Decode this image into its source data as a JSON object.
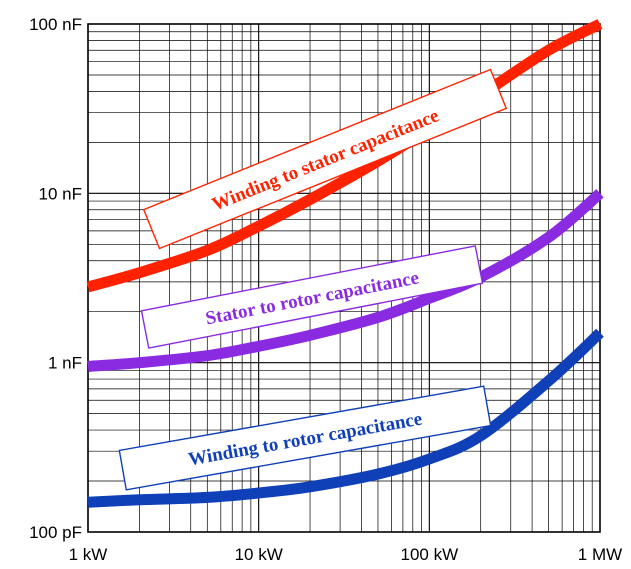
{
  "chart_data": {
    "type": "line",
    "title": "",
    "xlabel": "",
    "ylabel": "",
    "x_scale": "log",
    "y_scale": "log",
    "grid": true,
    "x_unit": "W",
    "y_unit": "F",
    "xlim": [
      1000,
      1000000
    ],
    "ylim": [
      1e-10,
      1e-07
    ],
    "x_ticks": [
      {
        "value": 1000,
        "label": "1 kW"
      },
      {
        "value": 10000,
        "label": "10 kW"
      },
      {
        "value": 100000,
        "label": "100 kW"
      },
      {
        "value": 1000000,
        "label": "1 MW"
      }
    ],
    "y_ticks": [
      {
        "value": 1e-10,
        "label": "100 pF"
      },
      {
        "value": 1e-09,
        "label": "1 nF"
      },
      {
        "value": 1e-08,
        "label": "10 nF"
      },
      {
        "value": 1e-07,
        "label": "100 nF"
      }
    ],
    "series": [
      {
        "name": "Winding to stator capacitance",
        "color": "#ff2200",
        "x": [
          1000,
          2000,
          5000,
          10000,
          20000,
          50000,
          100000,
          200000,
          500000,
          1000000
        ],
        "y": [
          2.8e-09,
          3.4e-09,
          4.6e-09,
          6.4e-09,
          9.2e-09,
          1.55e-08,
          2.4e-08,
          3.8e-08,
          7e-08,
          1e-07
        ]
      },
      {
        "name": "Stator to rotor capacitance",
        "color": "#8a2be2",
        "x": [
          1000,
          2000,
          5000,
          10000,
          20000,
          50000,
          100000,
          200000,
          500000,
          1000000
        ],
        "y": [
          9.5e-10,
          1e-09,
          1.1e-09,
          1.25e-09,
          1.45e-09,
          1.85e-09,
          2.4e-09,
          3.2e-09,
          5.5e-09,
          1e-08
        ]
      },
      {
        "name": "Winding to rotor capacitance",
        "color": "#1040b8",
        "x": [
          1000,
          2000,
          5000,
          10000,
          20000,
          50000,
          100000,
          200000,
          500000,
          1000000
        ],
        "y": [
          1.5e-10,
          1.55e-10,
          1.6e-10,
          1.7e-10,
          1.85e-10,
          2.2e-10,
          2.7e-10,
          3.7e-10,
          7.8e-10,
          1.5e-09
        ]
      }
    ],
    "annotations": [
      {
        "text": "Winding to stator capacitance",
        "series": 0
      },
      {
        "text": "Stator to rotor capacitance",
        "series": 1
      },
      {
        "text": "Winding to rotor capacitance",
        "series": 2
      }
    ]
  }
}
